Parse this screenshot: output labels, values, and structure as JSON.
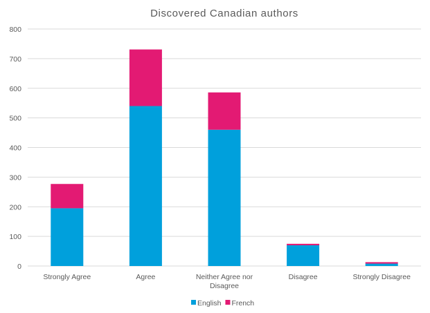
{
  "chart_data": {
    "type": "bar",
    "stacked": true,
    "title": "Discovered Canadian authors",
    "xlabel": "",
    "ylabel": "",
    "ylim": [
      0,
      800
    ],
    "yticks": [
      0,
      100,
      200,
      300,
      400,
      500,
      600,
      700,
      800
    ],
    "grid": true,
    "legend_position": "bottom",
    "categories": [
      [
        "Strongly Agree"
      ],
      [
        "Agree"
      ],
      [
        "Neither Agree nor",
        "Disagree"
      ],
      [
        "Disagree"
      ],
      [
        "Strongly Disagree"
      ]
    ],
    "series": [
      {
        "name": "English",
        "color": "#00a0dc",
        "values": [
          195,
          540,
          460,
          70,
          8
        ]
      },
      {
        "name": "French",
        "color": "#e31a73",
        "values": [
          82,
          191,
          126,
          5,
          5
        ]
      }
    ]
  }
}
